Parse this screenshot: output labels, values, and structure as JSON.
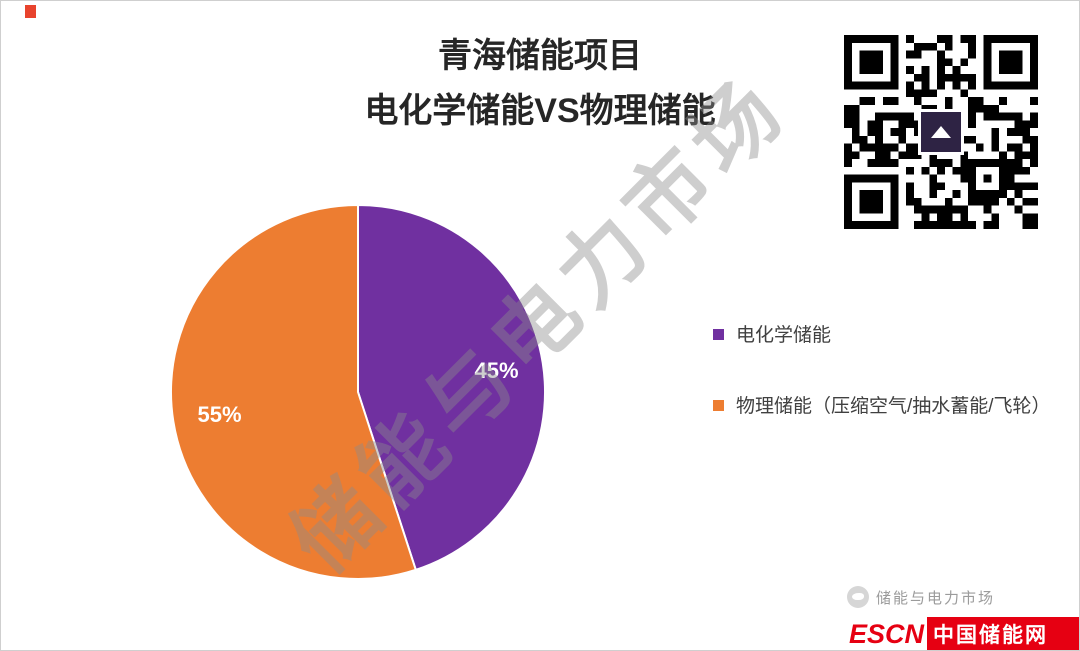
{
  "title": {
    "line1": "青海储能项目",
    "line2": "电化学储能VS物理储能"
  },
  "chart_data": {
    "type": "pie",
    "title": "青海储能项目 电化学储能VS物理储能",
    "start_angle_deg": 0,
    "direction": "clockwise",
    "legend_position": "right",
    "data_labels_shown": true,
    "slices": [
      {
        "label": "电化学储能",
        "value": 45,
        "data_label": "45%",
        "color": "#7030A0"
      },
      {
        "label": "物理储能（压缩空气/抽水蓄能/飞轮）",
        "value": 55,
        "data_label": "55%",
        "color": "#ED7D31"
      }
    ]
  },
  "watermark": {
    "text": "储能与电力市场"
  },
  "icons": {
    "qr": "wechat-qr-code",
    "bird": "bird-logo-icon"
  },
  "footer": {
    "brand_text": "储能与电力市场",
    "logo_prefix": "ESCN",
    "logo_name": "中国储能网",
    "logo_red": "#E60012"
  }
}
